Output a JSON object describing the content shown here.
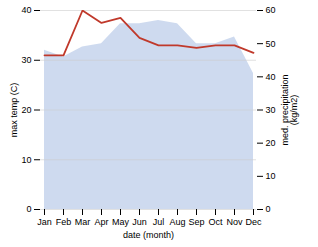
{
  "chart_data": {
    "type": "combo",
    "categories": [
      "Jan",
      "Feb",
      "Mar",
      "Apr",
      "May",
      "Jun",
      "Jul",
      "Aug",
      "Sep",
      "Oct",
      "Nov",
      "Dec"
    ],
    "series": [
      {
        "type": "area",
        "axis": "y2",
        "color": "#c5d4ec",
        "values": [
          48,
          46,
          49,
          50,
          56,
          56,
          57,
          56,
          50,
          50,
          52,
          41
        ]
      },
      {
        "type": "line",
        "color": "#c0392b",
        "values": [
          31.0,
          31.0,
          40.0,
          37.5,
          38.5,
          34.5,
          33.0,
          33.0,
          32.5,
          33.0,
          33.0,
          31.5
        ]
      }
    ],
    "xlabel": "date (month)",
    "ylabel": "max temp (C)",
    "y2label": "med. precipitation\n(kg/m2)",
    "ylim": [
      0,
      40
    ],
    "yticks": [
      0,
      10,
      20,
      30,
      40
    ],
    "y2lim": [
      0,
      60
    ],
    "y2ticks": [
      0,
      10,
      20,
      30,
      40,
      50,
      60
    ],
    "grid": true
  }
}
